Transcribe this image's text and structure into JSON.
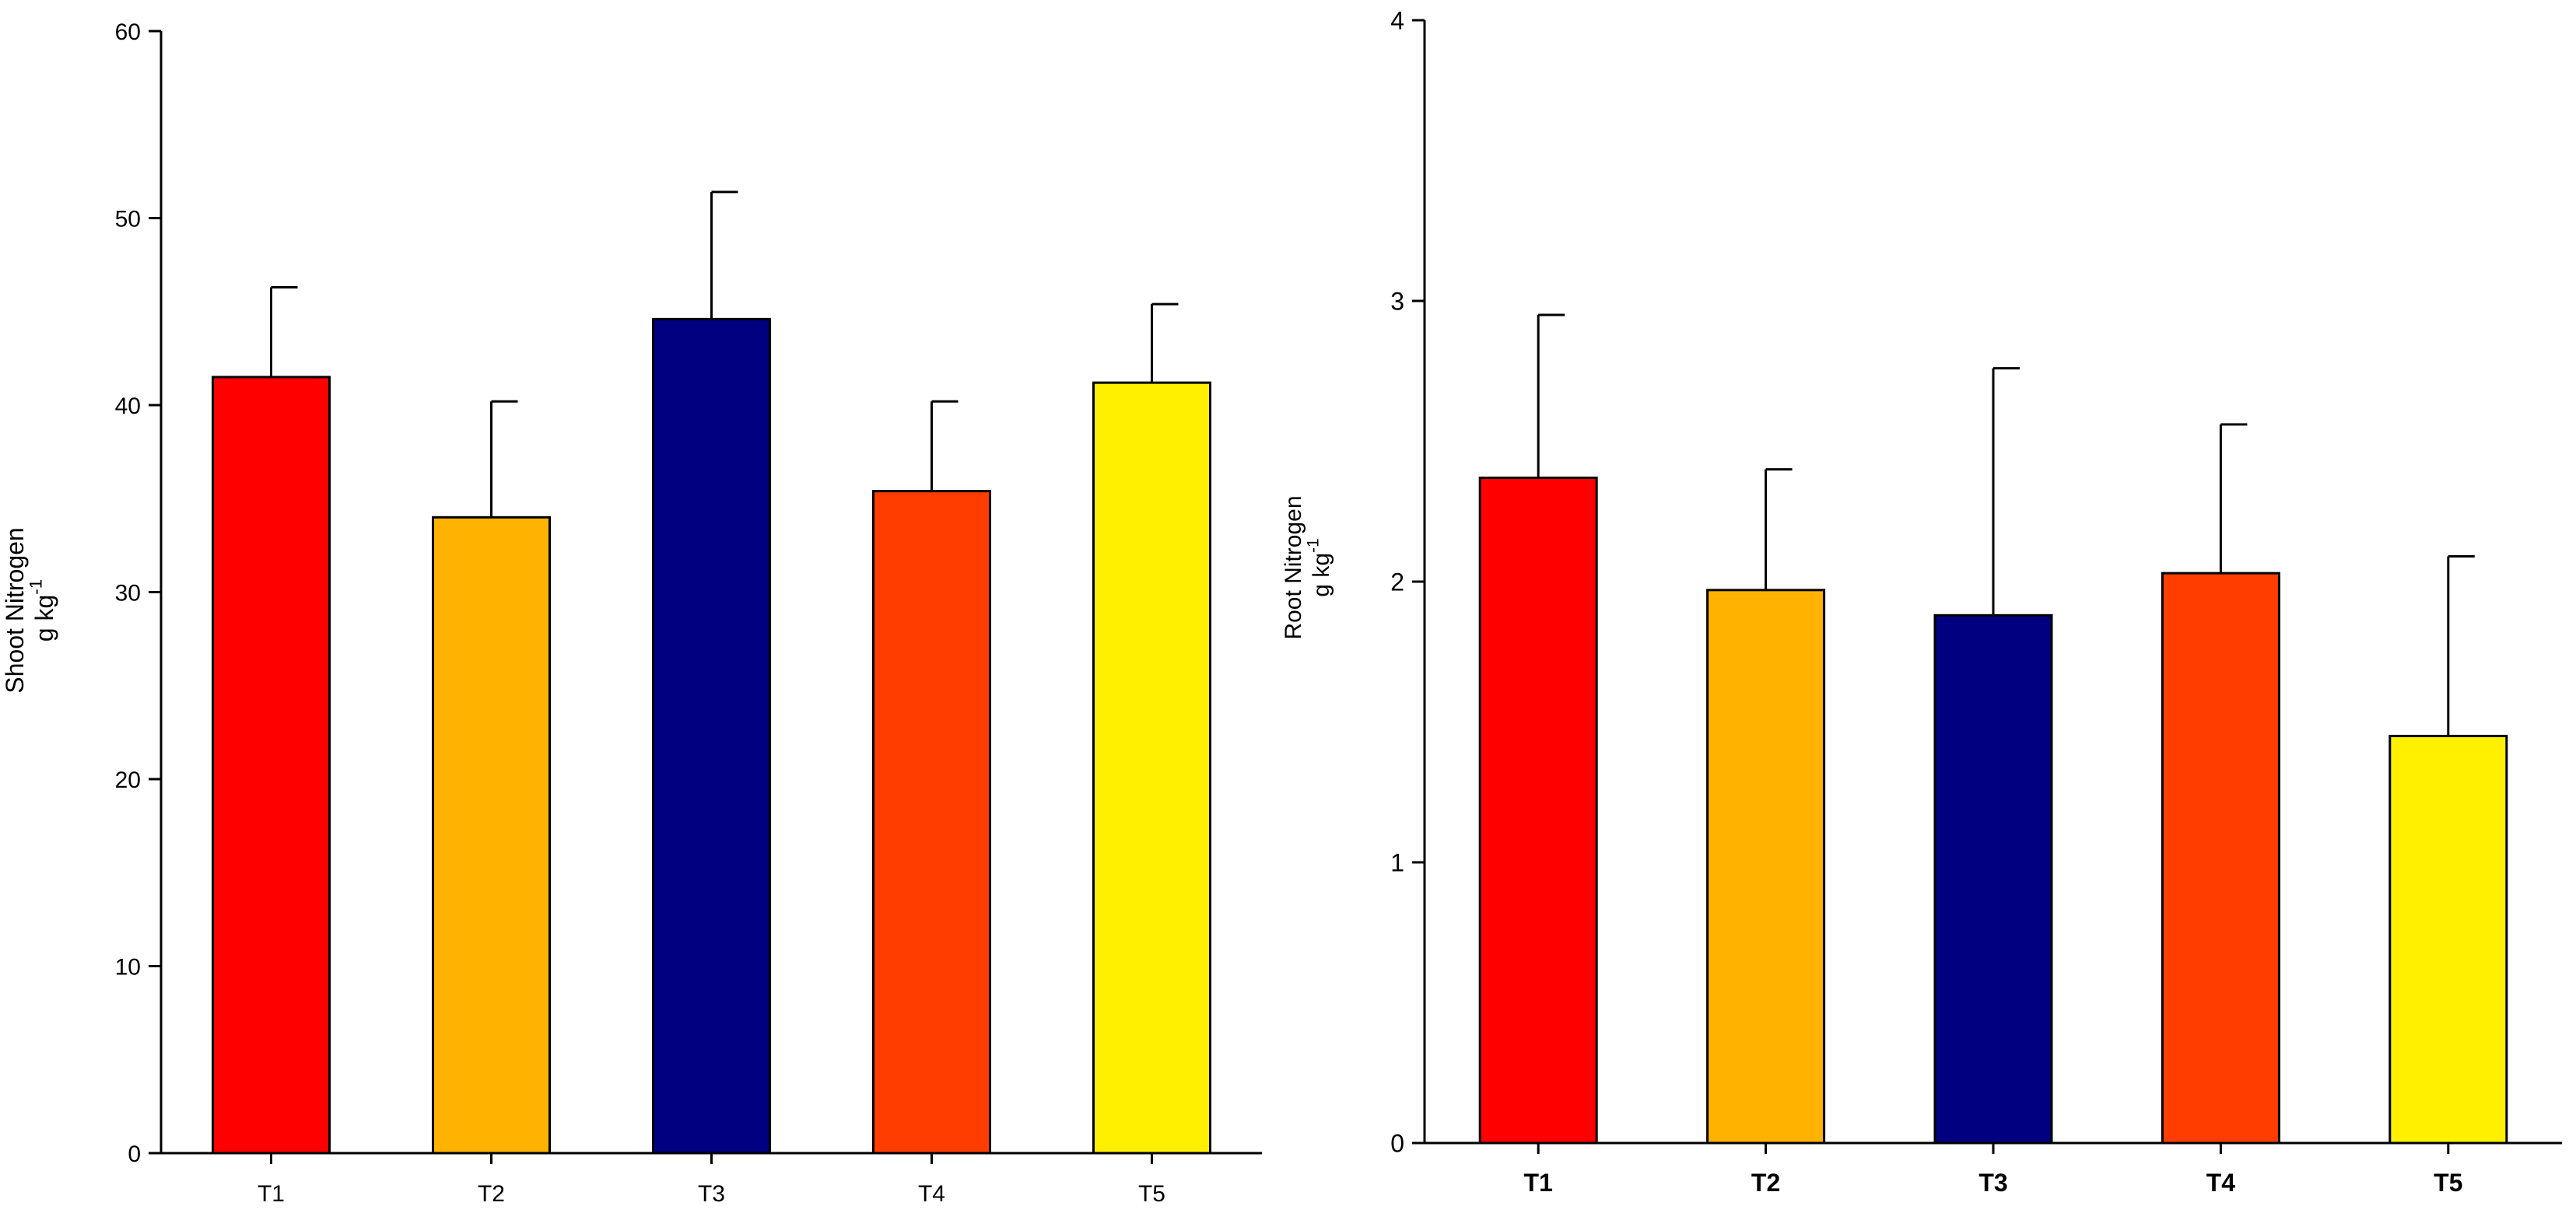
{
  "chart_data": [
    {
      "type": "bar",
      "title": "",
      "xlabel": "",
      "ylabel_line1": "Shoot Nitrogen",
      "ylabel_line2_base": "g kg",
      "ylabel_line2_exp": "-1",
      "categories": [
        "T1",
        "T2",
        "T3",
        "T4",
        "T5"
      ],
      "values": [
        41.5,
        34.0,
        44.6,
        35.4,
        41.2
      ],
      "errors": [
        4.8,
        6.2,
        6.8,
        4.8,
        4.2
      ],
      "colors": [
        "#FF0000",
        "#FFB300",
        "#000080",
        "#FF3D00",
        "#FFF000"
      ],
      "ylim": [
        0,
        60
      ],
      "yticks": [
        0,
        10,
        20,
        30,
        40,
        50,
        60
      ],
      "grid": false
    },
    {
      "type": "bar",
      "title": "",
      "xlabel": "",
      "ylabel_line1": "Root Nitrogen",
      "ylabel_line2_base": "g kg",
      "ylabel_line2_exp": "-1",
      "categories": [
        "T1",
        "T2",
        "T3",
        "T4",
        "T5"
      ],
      "values": [
        2.37,
        1.97,
        1.88,
        2.03,
        1.45
      ],
      "errors": [
        0.58,
        0.43,
        0.88,
        0.53,
        0.64
      ],
      "colors": [
        "#FF0000",
        "#FFB300",
        "#000080",
        "#FF3D00",
        "#FFF000"
      ],
      "ylim": [
        0,
        4
      ],
      "yticks": [
        0,
        1,
        2,
        3,
        4
      ],
      "grid": false
    }
  ]
}
